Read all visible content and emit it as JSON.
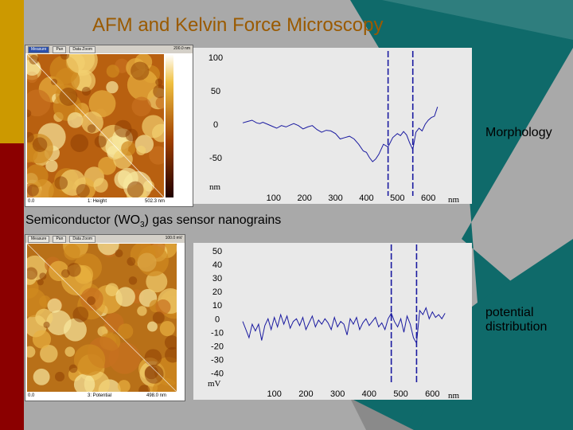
{
  "slide": {
    "title": "AFM and Kelvin Force Microscopy",
    "caption_prefix": "Semiconductor (WO",
    "caption_sub": "3",
    "caption_suffix": ") gas sensor nanograins",
    "label_morphology": "Morphology",
    "label_potential_line1": "potential",
    "label_potential_line2": "distribution",
    "colors": {
      "gold": "#cc9900",
      "dark_red": "#8b0000",
      "teal": "#0f6a6a",
      "grey": "#a9a9a9"
    }
  },
  "afm_top": {
    "tool_measure": "Measure",
    "tool_pan": "Pan",
    "tool_zoom": "Data Zoom",
    "range": "200.0 nm",
    "status_left": "0.0",
    "status_mid": "1: Height",
    "status_right": "502.3 nm"
  },
  "afm_bottom": {
    "tool_measure": "Measure",
    "tool_pan": "Pan",
    "tool_zoom": "Data Zoom",
    "range": "100.0 mV",
    "status_left": "0.0",
    "status_mid": "3: Potential",
    "status_right": "498.0 nm"
  },
  "chart_data": [
    {
      "type": "line",
      "y_ticks": [
        "100",
        "50",
        "0",
        "-50"
      ],
      "x_ticks": [
        "100",
        "200",
        "300",
        "400",
        "500",
        "600"
      ],
      "ylabel_unit": "nm",
      "xlabel_unit": "nm",
      "xlim": [
        0,
        700
      ],
      "ylim": [
        -100,
        100
      ],
      "markers_x": [
        470,
        550
      ],
      "series": [
        {
          "x": [
            0,
            15,
            30,
            45,
            55,
            65,
            80,
            95,
            110,
            125,
            140,
            155,
            165,
            180,
            195,
            210,
            225,
            240,
            255,
            270,
            285,
            300,
            315,
            330,
            345,
            360,
            375,
            390,
            400,
            410,
            420,
            430,
            440,
            455,
            470,
            485,
            500,
            510,
            520,
            530,
            540,
            550,
            560,
            570,
            580,
            590,
            600,
            610,
            620,
            630
          ],
          "y": [
            2,
            4,
            6,
            2,
            1,
            3,
            0,
            -3,
            -6,
            -2,
            -4,
            -1,
            1,
            -2,
            -7,
            -4,
            -2,
            -8,
            -12,
            -9,
            -10,
            -14,
            -22,
            -20,
            -18,
            -22,
            -30,
            -40,
            -42,
            -50,
            -56,
            -52,
            -45,
            -30,
            -34,
            -20,
            -14,
            -17,
            -11,
            -16,
            -28,
            -38,
            -12,
            -6,
            -10,
            0,
            6,
            10,
            12,
            26
          ]
        }
      ]
    },
    {
      "type": "line",
      "y_ticks": [
        "50",
        "40",
        "30",
        "20",
        "10",
        "0",
        "-10",
        "-20",
        "-30",
        "-40"
      ],
      "x_ticks": [
        "100",
        "200",
        "300",
        "400",
        "500",
        "600"
      ],
      "ylabel_unit": "mV",
      "xlabel_unit": "nm",
      "xlim": [
        0,
        700
      ],
      "ylim": [
        -45,
        50
      ],
      "markers_x": [
        470,
        550
      ],
      "series": [
        {
          "x": [
            0,
            10,
            20,
            30,
            40,
            50,
            60,
            70,
            80,
            90,
            100,
            110,
            120,
            130,
            140,
            150,
            160,
            170,
            180,
            190,
            200,
            210,
            220,
            230,
            240,
            250,
            260,
            270,
            280,
            290,
            300,
            310,
            320,
            330,
            340,
            350,
            360,
            370,
            380,
            390,
            400,
            410,
            420,
            430,
            440,
            450,
            460,
            470,
            480,
            490,
            500,
            510,
            520,
            530,
            540,
            550,
            560,
            570,
            580,
            590,
            600,
            610,
            620,
            630,
            640
          ],
          "y": [
            -2,
            -8,
            -14,
            -4,
            -9,
            -4,
            -16,
            -5,
            0,
            -8,
            1,
            -6,
            3,
            -4,
            2,
            -7,
            -2,
            0,
            -5,
            1,
            -8,
            -3,
            2,
            -6,
            -1,
            -4,
            0,
            -3,
            -8,
            1,
            -6,
            -2,
            -4,
            -12,
            0,
            -4,
            1,
            -8,
            -3,
            0,
            -5,
            -2,
            1,
            -6,
            -3,
            -8,
            0,
            4,
            -2,
            -6,
            0,
            -10,
            2,
            -4,
            -14,
            -18,
            6,
            3,
            8,
            0,
            5,
            1,
            3,
            0,
            4
          ]
        }
      ]
    }
  ]
}
